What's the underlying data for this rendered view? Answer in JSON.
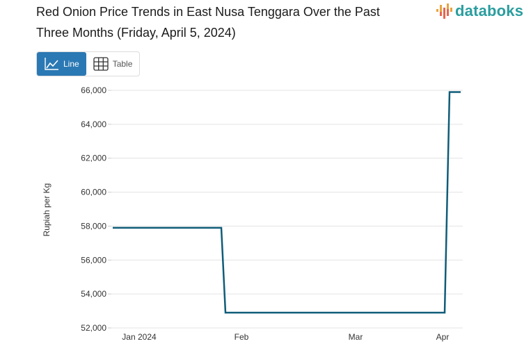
{
  "header": {
    "title": "Red Onion Price Trends in East Nusa Tenggara Over the Past Three Months (Friday, April 5, 2024)",
    "logo_text": "databoks",
    "logo_colors": [
      "#e8a33d",
      "#e8664f",
      "#2a9d9e"
    ]
  },
  "view_toggle": {
    "options": [
      {
        "label": "Line",
        "icon": "line-chart-icon",
        "active": true
      },
      {
        "label": "Table",
        "icon": "table-grid-icon",
        "active": false
      }
    ],
    "active_color": "#2b79b4"
  },
  "chart_data": {
    "type": "line",
    "title": "Red Onion Price Trends in East Nusa Tenggara Over the Past Three Months (Friday, April 5, 2024)",
    "xlabel": "",
    "ylabel": "Rupiah per Kg",
    "ylim": [
      52000,
      66000
    ],
    "yticks": [
      52000,
      54000,
      56000,
      58000,
      60000,
      62000,
      64000,
      66000
    ],
    "ytick_labels": [
      "52,000",
      "54,000",
      "56,000",
      "58,000",
      "60,000",
      "62,000",
      "64,000",
      "66,000"
    ],
    "xtick_labels": [
      "Jan 2024",
      "Feb",
      "Mar",
      "Apr"
    ],
    "grid": true,
    "legend": "none",
    "line_color": "#0f5c78",
    "series": [
      {
        "name": "Red Onion Price",
        "points": [
          {
            "x": "2024-01-05",
            "y": 57900
          },
          {
            "x": "2024-01-28",
            "y": 57900
          },
          {
            "x": "2024-01-29",
            "y": 52900
          },
          {
            "x": "2024-04-02",
            "y": 52900
          },
          {
            "x": "2024-04-03",
            "y": 65900
          },
          {
            "x": "2024-04-05",
            "y": 65900
          }
        ]
      }
    ]
  }
}
